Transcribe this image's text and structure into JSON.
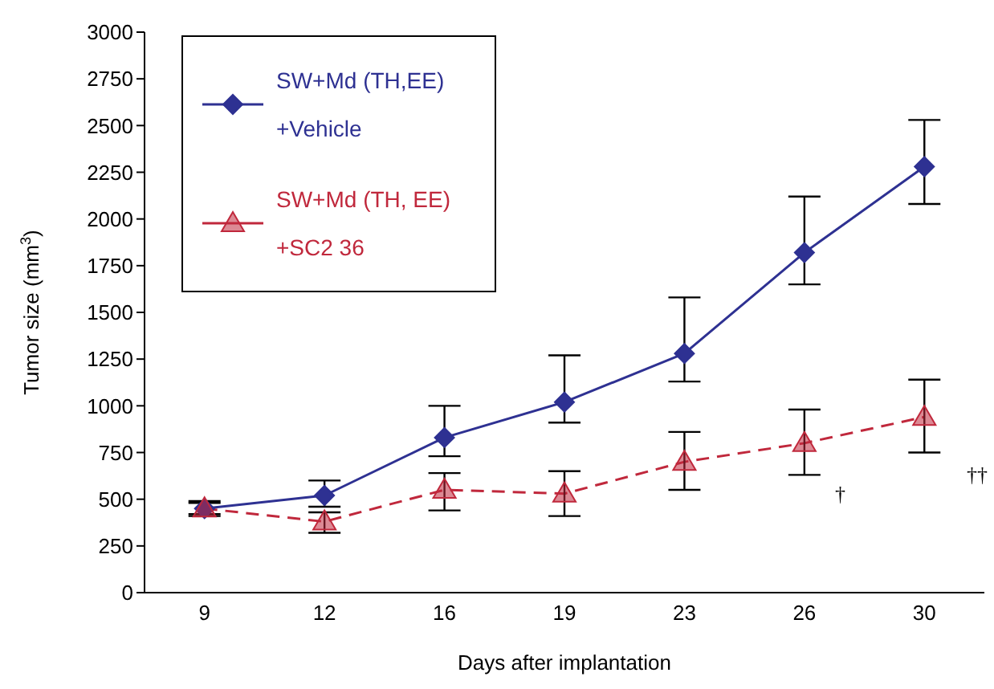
{
  "chart_data": {
    "type": "line",
    "xlabel": "Days after implantation",
    "ylabel": "Tumor size (mm$^{3}$)",
    "categories": [
      "9",
      "12",
      "16",
      "19",
      "23",
      "26",
      "30"
    ],
    "ylim": [
      0,
      3000
    ],
    "yticks": [
      0,
      250,
      500,
      750,
      1000,
      1250,
      1500,
      1750,
      2000,
      2250,
      2500,
      2750,
      3000
    ],
    "grid": false,
    "legend": "top left",
    "series": [
      {
        "name": "SW+Md (TH,EE) +Vehicle",
        "color": "#2e3192",
        "marker": "diamond",
        "line_style": "solid",
        "values": [
          450,
          520,
          830,
          1020,
          1280,
          1820,
          2280
        ],
        "errors": [
          [
            420,
            490
          ],
          [
            460,
            600
          ],
          [
            730,
            1000
          ],
          [
            910,
            1270
          ],
          [
            1130,
            1580
          ],
          [
            1650,
            2120
          ],
          [
            2080,
            2530
          ]
        ]
      },
      {
        "name": "SW+Md (TH, EE) +SC2 36",
        "color": "#c0283c",
        "marker": "triangle",
        "line_style": "dashed",
        "values": [
          450,
          380,
          550,
          530,
          700,
          800,
          940
        ],
        "errors": [
          [
            410,
            480
          ],
          [
            320,
            430
          ],
          [
            440,
            640
          ],
          [
            410,
            650
          ],
          [
            550,
            860
          ],
          [
            630,
            980
          ],
          [
            750,
            1140
          ]
        ]
      }
    ],
    "annotations": [
      "†",
      "††"
    ]
  }
}
